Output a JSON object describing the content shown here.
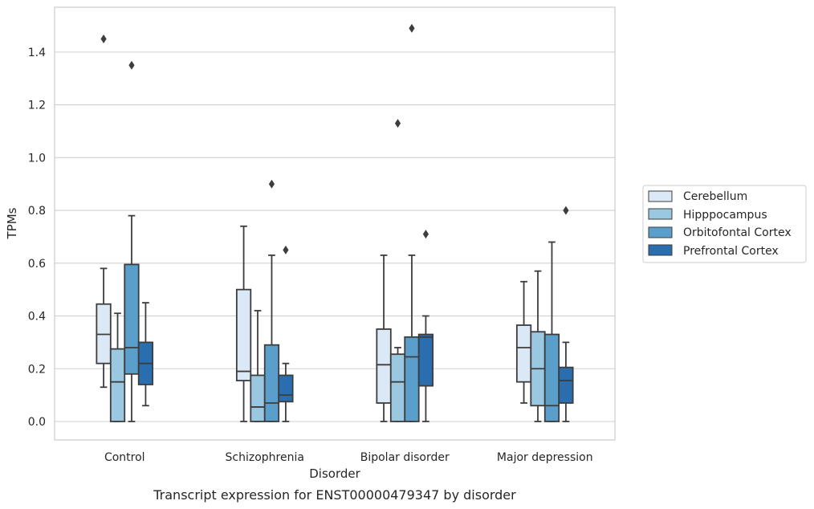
{
  "caption": "Transcript expression for ENST00000479347 by disorder",
  "chart_data": {
    "type": "box",
    "xlabel": "Disorder",
    "ylabel": "TPMs",
    "ylim": [
      -0.07,
      1.57
    ],
    "yticks": [
      "0.0",
      "0.2",
      "0.4",
      "0.6",
      "0.8",
      "1.0",
      "1.2",
      "1.4"
    ],
    "ytick_values": [
      0.0,
      0.2,
      0.4,
      0.6,
      0.8,
      1.0,
      1.2,
      1.4
    ],
    "grid": true,
    "legend_position": "right",
    "categories": [
      "Control",
      "Schizophrenia",
      "Bipolar disorder",
      "Major depression"
    ],
    "series": [
      {
        "name": "Cerebellum",
        "color": "#dbe9f6",
        "boxes": [
          {
            "whislo": 0.13,
            "q1": 0.22,
            "med": 0.33,
            "q3": 0.445,
            "whishi": 0.58,
            "fliers": [
              1.45
            ]
          },
          {
            "whislo": 0.0,
            "q1": 0.155,
            "med": 0.19,
            "q3": 0.5,
            "whishi": 0.74,
            "fliers": []
          },
          {
            "whislo": 0.0,
            "q1": 0.07,
            "med": 0.215,
            "q3": 0.35,
            "whishi": 0.63,
            "fliers": []
          },
          {
            "whislo": 0.07,
            "q1": 0.15,
            "med": 0.28,
            "q3": 0.365,
            "whishi": 0.53,
            "fliers": []
          }
        ]
      },
      {
        "name": "Hipppocampus",
        "color": "#9ac8e0",
        "boxes": [
          {
            "whislo": 0.0,
            "q1": 0.0,
            "med": 0.15,
            "q3": 0.275,
            "whishi": 0.41,
            "fliers": []
          },
          {
            "whislo": 0.0,
            "q1": 0.0,
            "med": 0.055,
            "q3": 0.175,
            "whishi": 0.42,
            "fliers": []
          },
          {
            "whislo": 0.0,
            "q1": 0.0,
            "med": 0.15,
            "q3": 0.255,
            "whishi": 0.28,
            "fliers": [
              1.13
            ]
          },
          {
            "whislo": 0.0,
            "q1": 0.06,
            "med": 0.2,
            "q3": 0.34,
            "whishi": 0.57,
            "fliers": []
          }
        ]
      },
      {
        "name": "Orbitofontal Cortex",
        "color": "#5a9fcc",
        "boxes": [
          {
            "whislo": 0.0,
            "q1": 0.18,
            "med": 0.28,
            "q3": 0.595,
            "whishi": 0.78,
            "fliers": [
              1.35
            ]
          },
          {
            "whislo": 0.0,
            "q1": 0.0,
            "med": 0.07,
            "q3": 0.29,
            "whishi": 0.63,
            "fliers": [
              0.9
            ]
          },
          {
            "whislo": 0.0,
            "q1": 0.0,
            "med": 0.245,
            "q3": 0.32,
            "whishi": 0.63,
            "fliers": [
              1.49
            ]
          },
          {
            "whislo": 0.0,
            "q1": 0.0,
            "med": 0.06,
            "q3": 0.33,
            "whishi": 0.68,
            "fliers": []
          }
        ]
      },
      {
        "name": "Prefrontal Cortex",
        "color": "#2a6eb0",
        "boxes": [
          {
            "whislo": 0.06,
            "q1": 0.14,
            "med": 0.22,
            "q3": 0.3,
            "whishi": 0.45,
            "fliers": []
          },
          {
            "whislo": 0.0,
            "q1": 0.075,
            "med": 0.1,
            "q3": 0.175,
            "whishi": 0.22,
            "fliers": [
              0.65
            ]
          },
          {
            "whislo": 0.0,
            "q1": 0.135,
            "med": 0.32,
            "q3": 0.33,
            "whishi": 0.4,
            "fliers": [
              0.71
            ]
          },
          {
            "whislo": 0.0,
            "q1": 0.07,
            "med": 0.155,
            "q3": 0.205,
            "whishi": 0.3,
            "fliers": [
              0.8
            ]
          }
        ]
      }
    ]
  }
}
